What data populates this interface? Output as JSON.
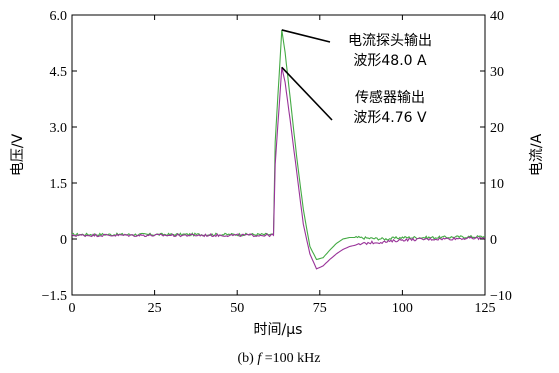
{
  "chart_data": {
    "type": "line",
    "xlabel": "时间/μs",
    "ylabel_left": "电压/V",
    "ylabel_right": "电流/A",
    "xlim": [
      0,
      125
    ],
    "ylim_left": [
      -1.5,
      6.0
    ],
    "ylim_right": [
      -10,
      40
    ],
    "x_ticks": [
      "0",
      "25",
      "50",
      "75",
      "100",
      "125"
    ],
    "y_left_ticks": [
      "−1.5",
      "0",
      "1.5",
      "3.0",
      "4.5",
      "6.0"
    ],
    "y_right_ticks": [
      "−10",
      "0",
      "10",
      "20",
      "30",
      "40"
    ],
    "caption": {
      "prefix": "(b) ",
      "var": "f",
      "rest": " =100 kHz"
    },
    "annotations": [
      {
        "lines": [
          "电流探头输出",
          "波形48.0 A"
        ],
        "target": {
          "x": 63.5,
          "y": 5.6
        }
      },
      {
        "lines": [
          "传感器输出",
          "波形4.76 V"
        ],
        "target": {
          "x": 63.5,
          "y": 4.6
        }
      }
    ],
    "series": [
      {
        "color": "#44aa44",
        "x": [
          0,
          20,
          40,
          55,
          61,
          61.5,
          63.5,
          64.5,
          66,
          68,
          70,
          72,
          74,
          76,
          78,
          80,
          82,
          84,
          86,
          90,
          95,
          100,
          110,
          120,
          125
        ],
        "y": [
          0.12,
          0.12,
          0.12,
          0.12,
          0.12,
          2.6,
          5.6,
          5.0,
          3.8,
          2.2,
          0.8,
          -0.2,
          -0.55,
          -0.5,
          -0.3,
          -0.12,
          0.0,
          0.04,
          0.04,
          0.02,
          0.0,
          0.04,
          0.04,
          0.06,
          0.06
        ]
      },
      {
        "color": "#993399",
        "x": [
          0,
          20,
          40,
          55,
          61,
          61.5,
          63.5,
          64.5,
          66,
          68,
          70,
          72,
          74,
          76,
          78,
          80,
          82,
          84,
          86,
          90,
          95,
          100,
          110,
          120,
          125
        ],
        "y": [
          0.1,
          0.1,
          0.1,
          0.1,
          0.1,
          2.0,
          4.6,
          4.2,
          3.2,
          1.8,
          0.4,
          -0.4,
          -0.8,
          -0.72,
          -0.55,
          -0.4,
          -0.28,
          -0.2,
          -0.16,
          -0.1,
          -0.08,
          -0.02,
          0.0,
          0.02,
          0.02
        ]
      }
    ]
  }
}
